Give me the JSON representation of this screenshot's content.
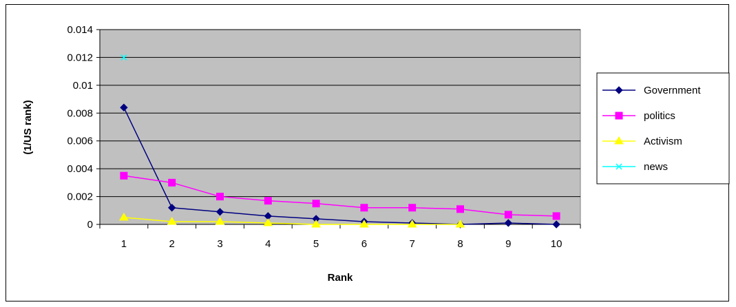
{
  "chart_data": {
    "type": "line",
    "title": "",
    "xlabel": "Rank",
    "ylabel": "(1/US rank)",
    "categories": [
      "1",
      "2",
      "3",
      "4",
      "5",
      "6",
      "7",
      "8",
      "9",
      "10"
    ],
    "y_ticks": [
      "0",
      "0.002",
      "0.004",
      "0.006",
      "0.008",
      "0.01",
      "0.012",
      "0.014"
    ],
    "ylim": [
      0,
      0.014
    ],
    "grid": "horizontal",
    "plot_background": "#c0c0c0",
    "legend_position": "right",
    "series": [
      {
        "name": "Government",
        "color": "#000080",
        "marker": "diamond",
        "values": [
          0.0084,
          0.0012,
          0.0009,
          0.0006,
          0.0004,
          0.0002,
          0.0001,
          0.0,
          0.0001,
          0.0
        ]
      },
      {
        "name": "politics",
        "color": "#ff00ff",
        "marker": "square",
        "values": [
          0.0035,
          0.003,
          0.002,
          0.0017,
          0.0015,
          0.0012,
          0.0012,
          0.0011,
          0.0007,
          0.0006
        ]
      },
      {
        "name": "Activism",
        "color": "#ffff00",
        "marker": "triangle",
        "values": [
          0.0005,
          0.0002,
          0.0002,
          0.0001,
          0.0,
          0.0,
          0.0,
          0.0,
          null,
          null
        ]
      },
      {
        "name": "news",
        "color": "#00ffff",
        "marker": "x",
        "values": [
          0.012,
          null,
          null,
          null,
          null,
          null,
          null,
          null,
          null,
          null
        ]
      }
    ]
  }
}
